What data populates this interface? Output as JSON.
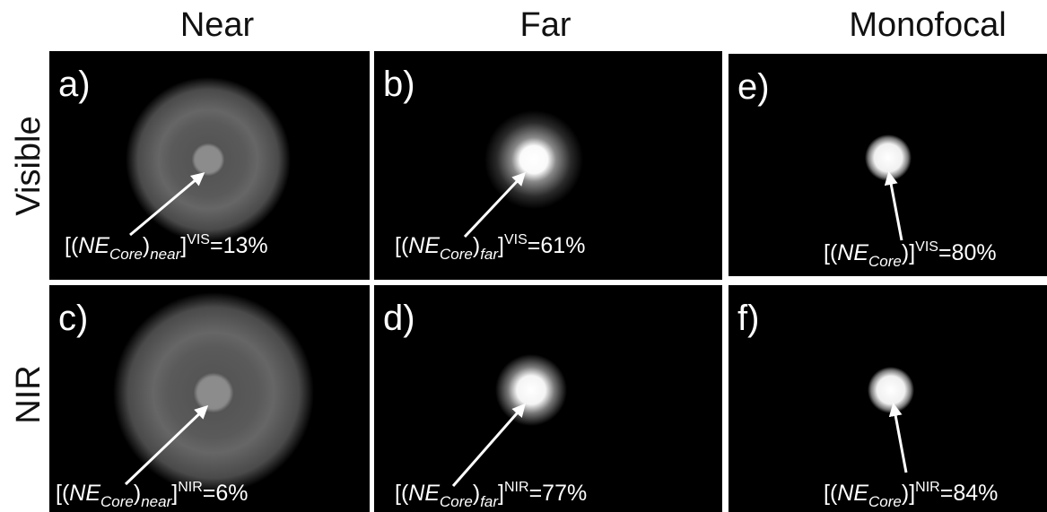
{
  "columns": [
    "Near",
    "Far",
    "Monofocal"
  ],
  "rows": [
    "Visible",
    "NIR"
  ],
  "panels": [
    {
      "letter": "a)",
      "label": {
        "open": "[(",
        "base": "NE",
        "core": "Core",
        "close": ")",
        "mode": "near",
        "close2": "]",
        "band": "VIS",
        "value": "=13%"
      }
    },
    {
      "letter": "b)",
      "label": {
        "open": "[(",
        "base": "NE",
        "core": "Core",
        "close": ")",
        "mode": "far",
        "close2": "]",
        "band": "VIS",
        "value": "=61%"
      }
    },
    {
      "letter": "e)",
      "label": {
        "open": "[(",
        "base": "NE",
        "core": "Core",
        "close": ")",
        "mode": null,
        "close2": "]",
        "band": "VIS",
        "value": "=80%"
      }
    },
    {
      "letter": "c)",
      "label": {
        "open": "[(",
        "base": "NE",
        "core": "Core",
        "close": ")",
        "mode": "near",
        "close2": "]",
        "band": "NIR",
        "value": "=6%"
      }
    },
    {
      "letter": "d)",
      "label": {
        "open": "[(",
        "base": "NE",
        "core": "Core",
        "close": ")",
        "mode": "far",
        "close2": "]",
        "band": "NIR",
        "value": "=77%"
      }
    },
    {
      "letter": "f)",
      "label": {
        "open": "[(",
        "base": "NE",
        "core": "Core",
        "close": ")",
        "mode": null,
        "close2": "]",
        "band": "NIR",
        "value": "=84%"
      }
    }
  ]
}
